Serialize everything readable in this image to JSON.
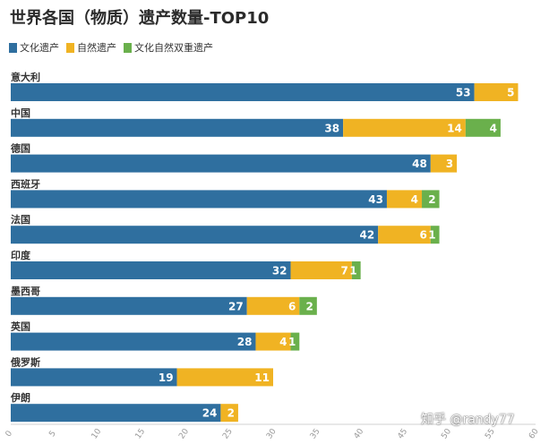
{
  "chart_data": {
    "type": "bar",
    "orientation": "horizontal",
    "stacked": true,
    "title": "世界各国（物质）遗产数量-TOP10",
    "categories": [
      "意大利",
      "中国",
      "德国",
      "西班牙",
      "法国",
      "印度",
      "墨西哥",
      "英国",
      "俄罗斯",
      "伊朗"
    ],
    "series": [
      {
        "name": "文化遗产",
        "color": "#2f6f9f",
        "values": [
          53,
          38,
          48,
          43,
          42,
          32,
          27,
          28,
          19,
          24
        ]
      },
      {
        "name": "自然遗产",
        "color": "#f0b323",
        "values": [
          5,
          14,
          3,
          4,
          6,
          7,
          6,
          4,
          11,
          2
        ]
      },
      {
        "name": "文化自然双重遗产",
        "color": "#6ab04c",
        "values": [
          0,
          4,
          0,
          2,
          1,
          1,
          2,
          1,
          0,
          0
        ]
      }
    ],
    "xlim": [
      0,
      60
    ],
    "xticks": [
      0,
      5,
      10,
      15,
      20,
      25,
      30,
      35,
      40,
      45,
      50,
      55,
      60
    ],
    "legend_position": "top-left",
    "grid": false
  },
  "watermark": "知乎 @randy77"
}
